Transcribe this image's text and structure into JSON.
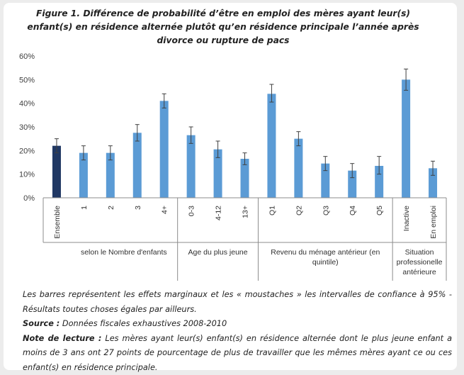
{
  "title": "Figure 1. Différence de probabilité d’être en emploi des mères ayant leur(s) enfant(s) en résidence alternée plutôt qu’en résidence principale l’année après divorce ou rupture de pacs",
  "chart_data": {
    "type": "bar",
    "ylim": [
      0,
      60
    ],
    "yticks": [
      "0%",
      "10%",
      "20%",
      "30%",
      "40%",
      "50%",
      "60%"
    ],
    "grid": false,
    "categories": [
      "Ensemble",
      "1",
      "2",
      "3",
      "4+",
      "0-3",
      "4-12",
      "13+",
      "Q1",
      "Q2",
      "Q3",
      "Q4",
      "Q5",
      "Inactive",
      "En emploi"
    ],
    "values": [
      22,
      19,
      19,
      27.5,
      41,
      26.5,
      20.5,
      16.5,
      44,
      25,
      14.5,
      11.5,
      13.5,
      50,
      12.5
    ],
    "ci_low": [
      19,
      16,
      16,
      24,
      38,
      23,
      17,
      14,
      40.5,
      22,
      11.5,
      8.5,
      10,
      45.5,
      9.5
    ],
    "ci_high": [
      25,
      22,
      22,
      31,
      44,
      30,
      24,
      19,
      48,
      28,
      17.5,
      14.5,
      17.5,
      54.5,
      15.5
    ],
    "bar_colors": [
      "#203864",
      "#5b9bd5",
      "#5b9bd5",
      "#5b9bd5",
      "#5b9bd5",
      "#5b9bd5",
      "#5b9bd5",
      "#5b9bd5",
      "#5b9bd5",
      "#5b9bd5",
      "#5b9bd5",
      "#5b9bd5",
      "#5b9bd5",
      "#5b9bd5",
      "#5b9bd5"
    ],
    "groups": [
      {
        "label": "selon le Nombre d'enfants",
        "start": 1,
        "end": 4
      },
      {
        "label": "Age du plus jeune",
        "start": 5,
        "end": 7
      },
      {
        "label": "Revenu du ménage antérieur (en quintile)",
        "start": 8,
        "end": 12
      },
      {
        "label": "Situation professionelle antérieure",
        "start": 13,
        "end": 14
      }
    ]
  },
  "notes": {
    "line1": "Les barres représentent les effets marginaux et les « moustaches » les intervalles de confiance à 95% - Résultats toutes choses égales par ailleurs.",
    "source_label": "Source :",
    "source_text": " Données fiscales exhaustives 2008-2010",
    "reading_label": "Note de lecture :",
    "reading_text": " Les mères ayant leur(s) enfant(s) en résidence alternée dont le plus jeune enfant a moins de 3 ans ont 27 points de pourcentage de plus de travailler que les mêmes mères ayant ce ou ces enfant(s) en résidence principale."
  }
}
